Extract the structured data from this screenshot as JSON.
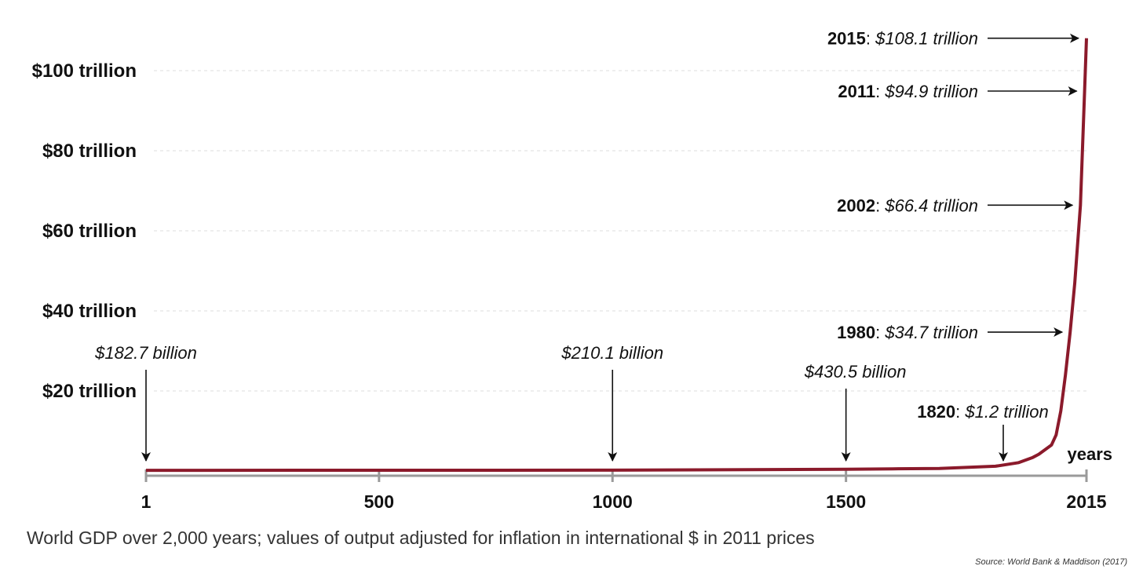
{
  "caption": "World GDP over 2,000 years; values of output adjusted for inflation in international $ in 2011 prices",
  "source": "Source: World Bank & Maddison (2017)",
  "chart_data": {
    "type": "line",
    "title": "",
    "xlabel": "years",
    "ylabel": "",
    "xlim": [
      1,
      2015
    ],
    "ylim": [
      0,
      110
    ],
    "y_unit": "trillion international $ (2011 prices)",
    "grid": "horizontal dashed",
    "x_ticks": [
      {
        "value": 1,
        "label": "1"
      },
      {
        "value": 500,
        "label": "500"
      },
      {
        "value": 1000,
        "label": "1000"
      },
      {
        "value": 1500,
        "label": "1500"
      },
      {
        "value": 2015,
        "label": "2015"
      }
    ],
    "y_ticks": [
      {
        "value": 20,
        "label": "$20 trillion"
      },
      {
        "value": 40,
        "label": "$40 trillion"
      },
      {
        "value": 60,
        "label": "$60 trillion"
      },
      {
        "value": 80,
        "label": "$80 trillion"
      },
      {
        "value": 100,
        "label": "$100 trillion"
      }
    ],
    "series": [
      {
        "color": "#8b1a2b",
        "x": [
          1,
          500,
          1000,
          1500,
          1600,
          1700,
          1820,
          1870,
          1900,
          1913,
          1940,
          1950,
          1960,
          1970,
          1980,
          1990,
          2002,
          2011,
          2015
        ],
        "y": [
          0.1827,
          0.19,
          0.2101,
          0.4305,
          0.55,
          0.64,
          1.2,
          2.1,
          3.4,
          4.2,
          6.5,
          9.0,
          15.0,
          24.0,
          34.7,
          47.0,
          66.4,
          94.9,
          108.1
        ]
      }
    ],
    "annotations": [
      {
        "x": 1,
        "y": 0.1827,
        "year": "",
        "value": "$182.7 billion",
        "style": "above"
      },
      {
        "x": 1000,
        "y": 0.2101,
        "year": "",
        "value": "$210.1 billion",
        "style": "above"
      },
      {
        "x": 1500,
        "y": 0.4305,
        "year": "",
        "value": "$430.5 billion",
        "style": "above"
      },
      {
        "x": 1820,
        "y": 1.2,
        "year": "1820",
        "value": "$1.2 trillion",
        "style": "above"
      },
      {
        "x": 1980,
        "y": 34.7,
        "year": "1980",
        "value": "$34.7 trillion",
        "style": "left"
      },
      {
        "x": 2002,
        "y": 66.4,
        "year": "2002",
        "value": "$66.4 trillion",
        "style": "left"
      },
      {
        "x": 2011,
        "y": 94.9,
        "year": "2011",
        "value": "$94.9 trillion",
        "style": "left"
      },
      {
        "x": 2015,
        "y": 108.1,
        "year": "2015",
        "value": "$108.1 trillion",
        "style": "left"
      }
    ]
  }
}
